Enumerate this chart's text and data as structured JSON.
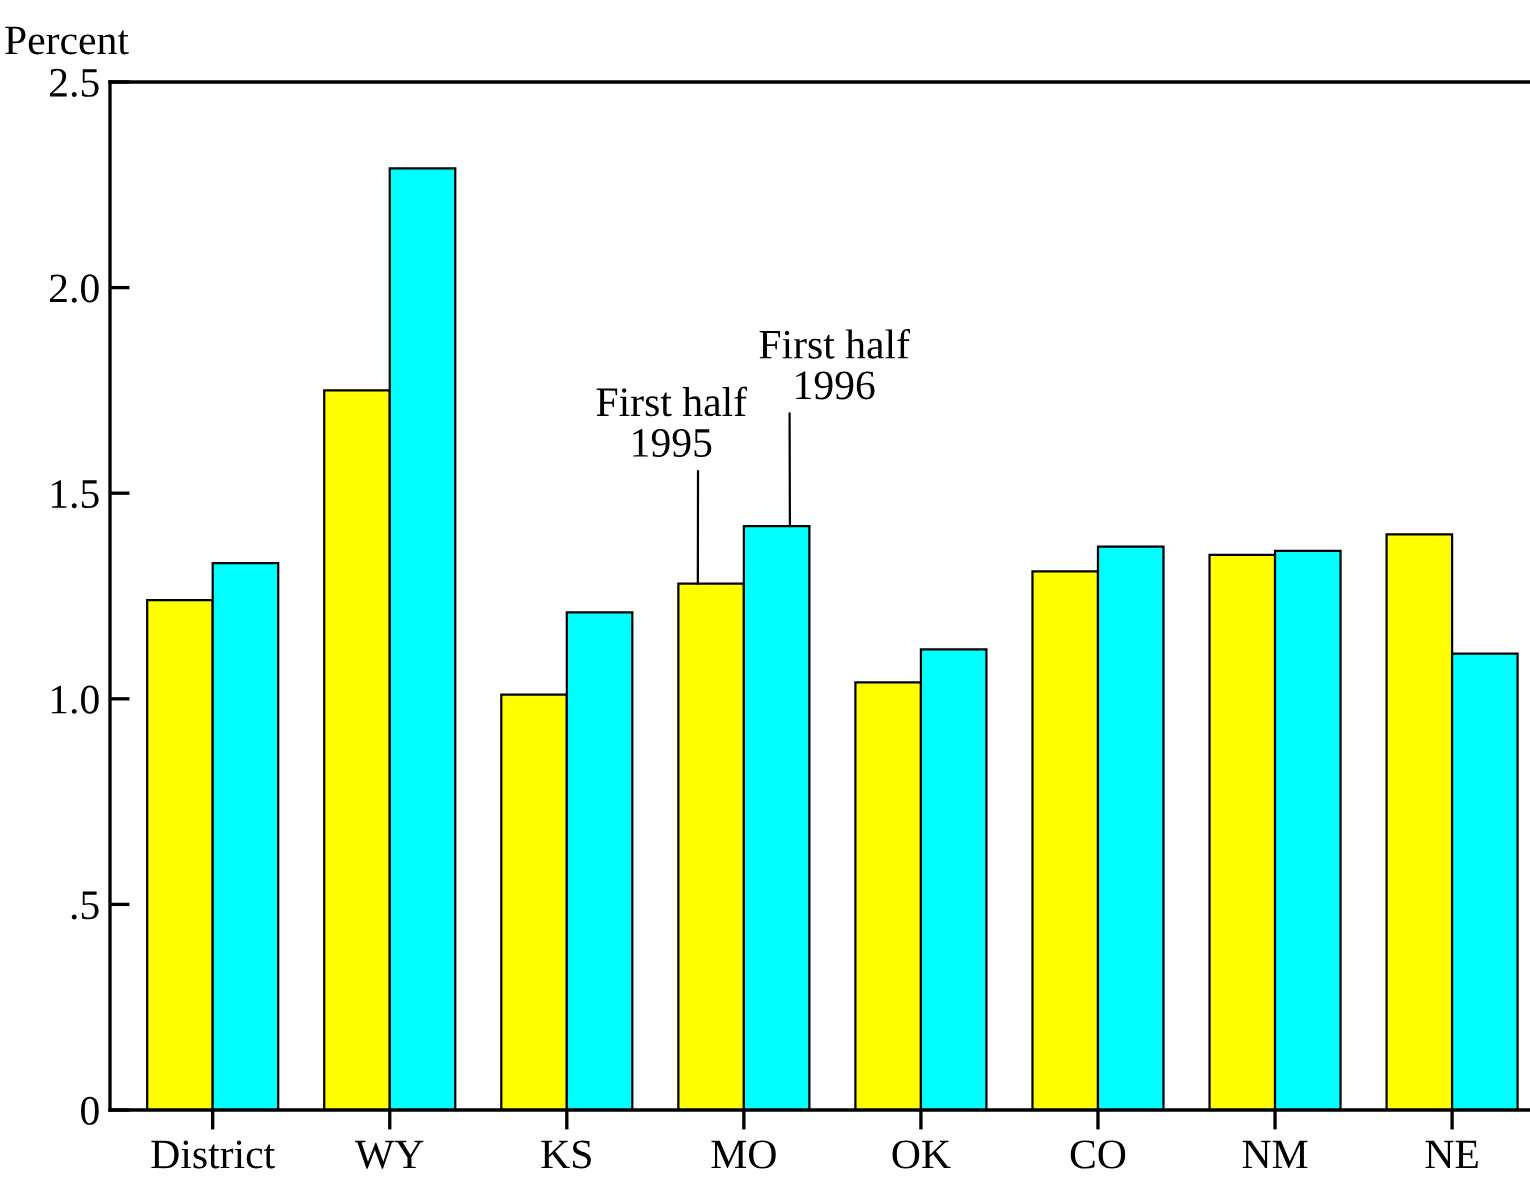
{
  "chart_data": {
    "type": "bar",
    "ylabel": "Percent",
    "categories": [
      "District",
      "WY",
      "KS",
      "MO",
      "OK",
      "CO",
      "NM",
      "NE"
    ],
    "series": [
      {
        "name": "First half\n1995",
        "color": "#ffff00",
        "values": [
          1.24,
          1.75,
          1.01,
          1.28,
          1.04,
          1.31,
          1.35,
          1.4
        ]
      },
      {
        "name": "First half\n1996",
        "color": "#00ffff",
        "values": [
          1.33,
          2.29,
          1.21,
          1.42,
          1.12,
          1.37,
          1.36,
          1.11
        ]
      }
    ],
    "ylim": [
      0,
      2.5
    ],
    "yticks": [
      0,
      {
        "value": 0.5,
        "label": ".5"
      },
      {
        "value": 1.0,
        "label": "1.0"
      },
      {
        "value": 1.5,
        "label": "1.5"
      },
      {
        "value": 2.0,
        "label": "2.0"
      },
      2.5
    ],
    "grid": false,
    "legend": false
  }
}
